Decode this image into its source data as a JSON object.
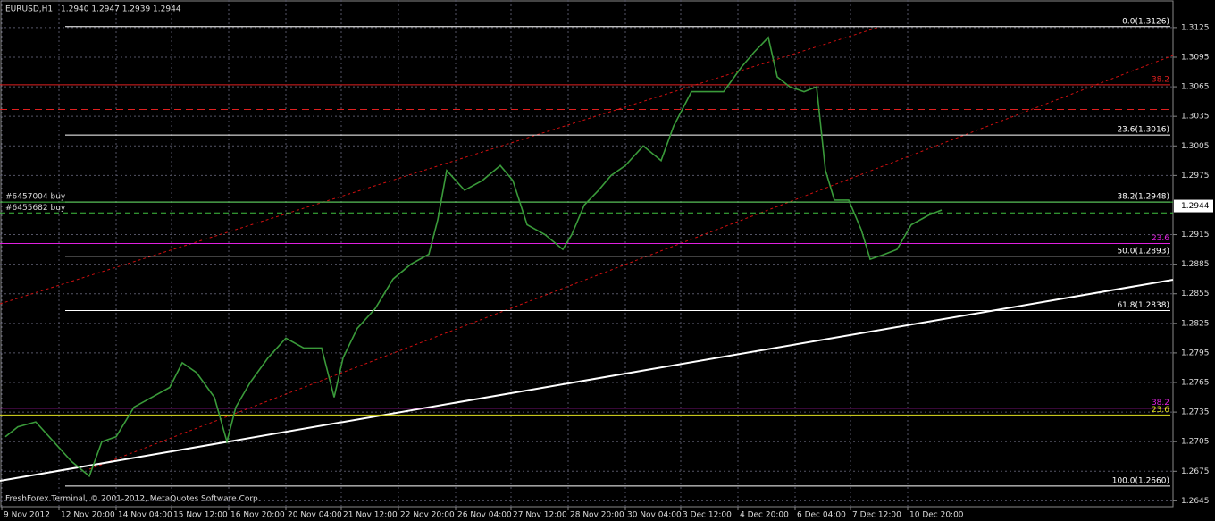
{
  "chart_data": {
    "type": "line",
    "title": "EURUSD,H1",
    "subtitle": "1.2940 1.2947 1.2939 1.2944",
    "footer": "FreshForex Terminal, © 2001-2012, MetaQuotes Software Corp.",
    "grid": true,
    "xlim": [
      -1,
      655.5
    ],
    "ylim": [
      1.2639,
      1.3153
    ],
    "xticks": [
      {
        "value": 0,
        "label": "9 Nov 2012"
      },
      {
        "value": 32,
        "label": "12 Nov 20:00"
      },
      {
        "value": 64,
        "label": "14 Nov 04:00"
      },
      {
        "value": 95,
        "label": "15 Nov 12:00"
      },
      {
        "value": 127,
        "label": "16 Nov 20:00"
      },
      {
        "value": 159,
        "label": "20 Nov 04:00"
      },
      {
        "value": 190,
        "label": "21 Nov 12:00"
      },
      {
        "value": 222,
        "label": "22 Nov 20:00"
      },
      {
        "value": 254,
        "label": "26 Nov 04:00"
      },
      {
        "value": 285,
        "label": "27 Nov 12:00"
      },
      {
        "value": 317,
        "label": "28 Nov 20:00"
      },
      {
        "value": 349,
        "label": "30 Nov 04:00"
      },
      {
        "value": 380,
        "label": "3 Dec 12:00"
      },
      {
        "value": 412,
        "label": "4 Dec 20:00"
      },
      {
        "value": 444,
        "label": "6 Dec 04:00"
      },
      {
        "value": 475,
        "label": "7 Dec 12:00"
      },
      {
        "value": 507,
        "label": "10 Dec 20:00"
      }
    ],
    "yticks": [
      1.3125,
      1.3095,
      1.3065,
      1.3035,
      1.3005,
      1.2975,
      1.2915,
      1.2885,
      1.2855,
      1.2825,
      1.2795,
      1.2765,
      1.2735,
      1.2705,
      1.2675,
      1.2645
    ],
    "current_price": 1.2944,
    "series": [
      {
        "name": "EURUSD",
        "color": "#3a9a3a",
        "x": [
          2,
          9,
          19,
          29,
          39,
          49,
          56,
          64,
          74,
          84,
          94,
          101,
          109,
          119,
          126,
          131,
          139,
          149,
          159,
          169,
          179,
          186,
          191,
          199,
          209,
          219,
          229,
          239,
          244,
          249,
          259,
          269,
          279,
          286,
          294,
          304,
          314,
          319,
          326,
          334,
          341,
          349,
          359,
          369,
          376,
          386,
          394,
          404,
          414,
          421,
          429,
          434,
          441,
          449,
          456,
          461,
          466,
          474,
          481,
          486,
          494,
          501,
          509,
          519,
          526
        ],
        "values": [
          1.271,
          1.272,
          1.2725,
          1.2705,
          1.2685,
          1.267,
          1.2705,
          1.271,
          1.274,
          1.275,
          1.276,
          1.2785,
          1.2775,
          1.275,
          1.2705,
          1.274,
          1.2765,
          1.279,
          1.281,
          1.28,
          1.28,
          1.275,
          1.279,
          1.282,
          1.284,
          1.287,
          1.2885,
          1.2895,
          1.293,
          1.298,
          1.296,
          1.297,
          1.2985,
          1.297,
          1.2925,
          1.2915,
          1.29,
          1.2915,
          1.2945,
          1.296,
          1.2975,
          1.2985,
          1.3005,
          1.299,
          1.3025,
          1.306,
          1.306,
          1.306,
          1.3085,
          1.31,
          1.3115,
          1.3075,
          1.3065,
          1.306,
          1.3065,
          1.298,
          1.295,
          1.295,
          1.292,
          1.289,
          1.2895,
          1.29,
          1.2925,
          1.2935,
          1.294
        ]
      }
    ],
    "levels": [
      {
        "label": "0.0(1.3126)",
        "value": 1.3126,
        "color": "#ffffff"
      },
      {
        "label": "23.6(1.3016)",
        "value": 1.3016,
        "color": "#ffffff"
      },
      {
        "label": "38.2(1.2948)",
        "value": 1.2948,
        "color": "#ffffff"
      },
      {
        "label": "50.0(1.2893)",
        "value": 1.2893,
        "color": "#ffffff"
      },
      {
        "label": "61.8(1.2838)",
        "value": 1.2838,
        "color": "#ffffff"
      },
      {
        "label": "100.0(1.2660)",
        "value": 1.266,
        "color": "#ffffff"
      },
      {
        "label": "38.2",
        "value": 1.3067,
        "color": "#e02020"
      },
      {
        "value": 1.3042,
        "color": "#e02020",
        "dashed": true
      },
      {
        "label": "23.6",
        "value": 1.2906,
        "color": "#e020e0"
      },
      {
        "label": "38.2",
        "value": 1.2739,
        "color": "#e020e0"
      },
      {
        "label": "23.6",
        "value": 1.2732,
        "color": "#e0e020"
      }
    ],
    "orders": [
      {
        "label": "#6457004 buy",
        "value": 1.2948,
        "color": "#40c040"
      },
      {
        "label": "#6455682 buy",
        "value": 1.2937,
        "color": "#40c040",
        "dashed": true
      }
    ]
  }
}
